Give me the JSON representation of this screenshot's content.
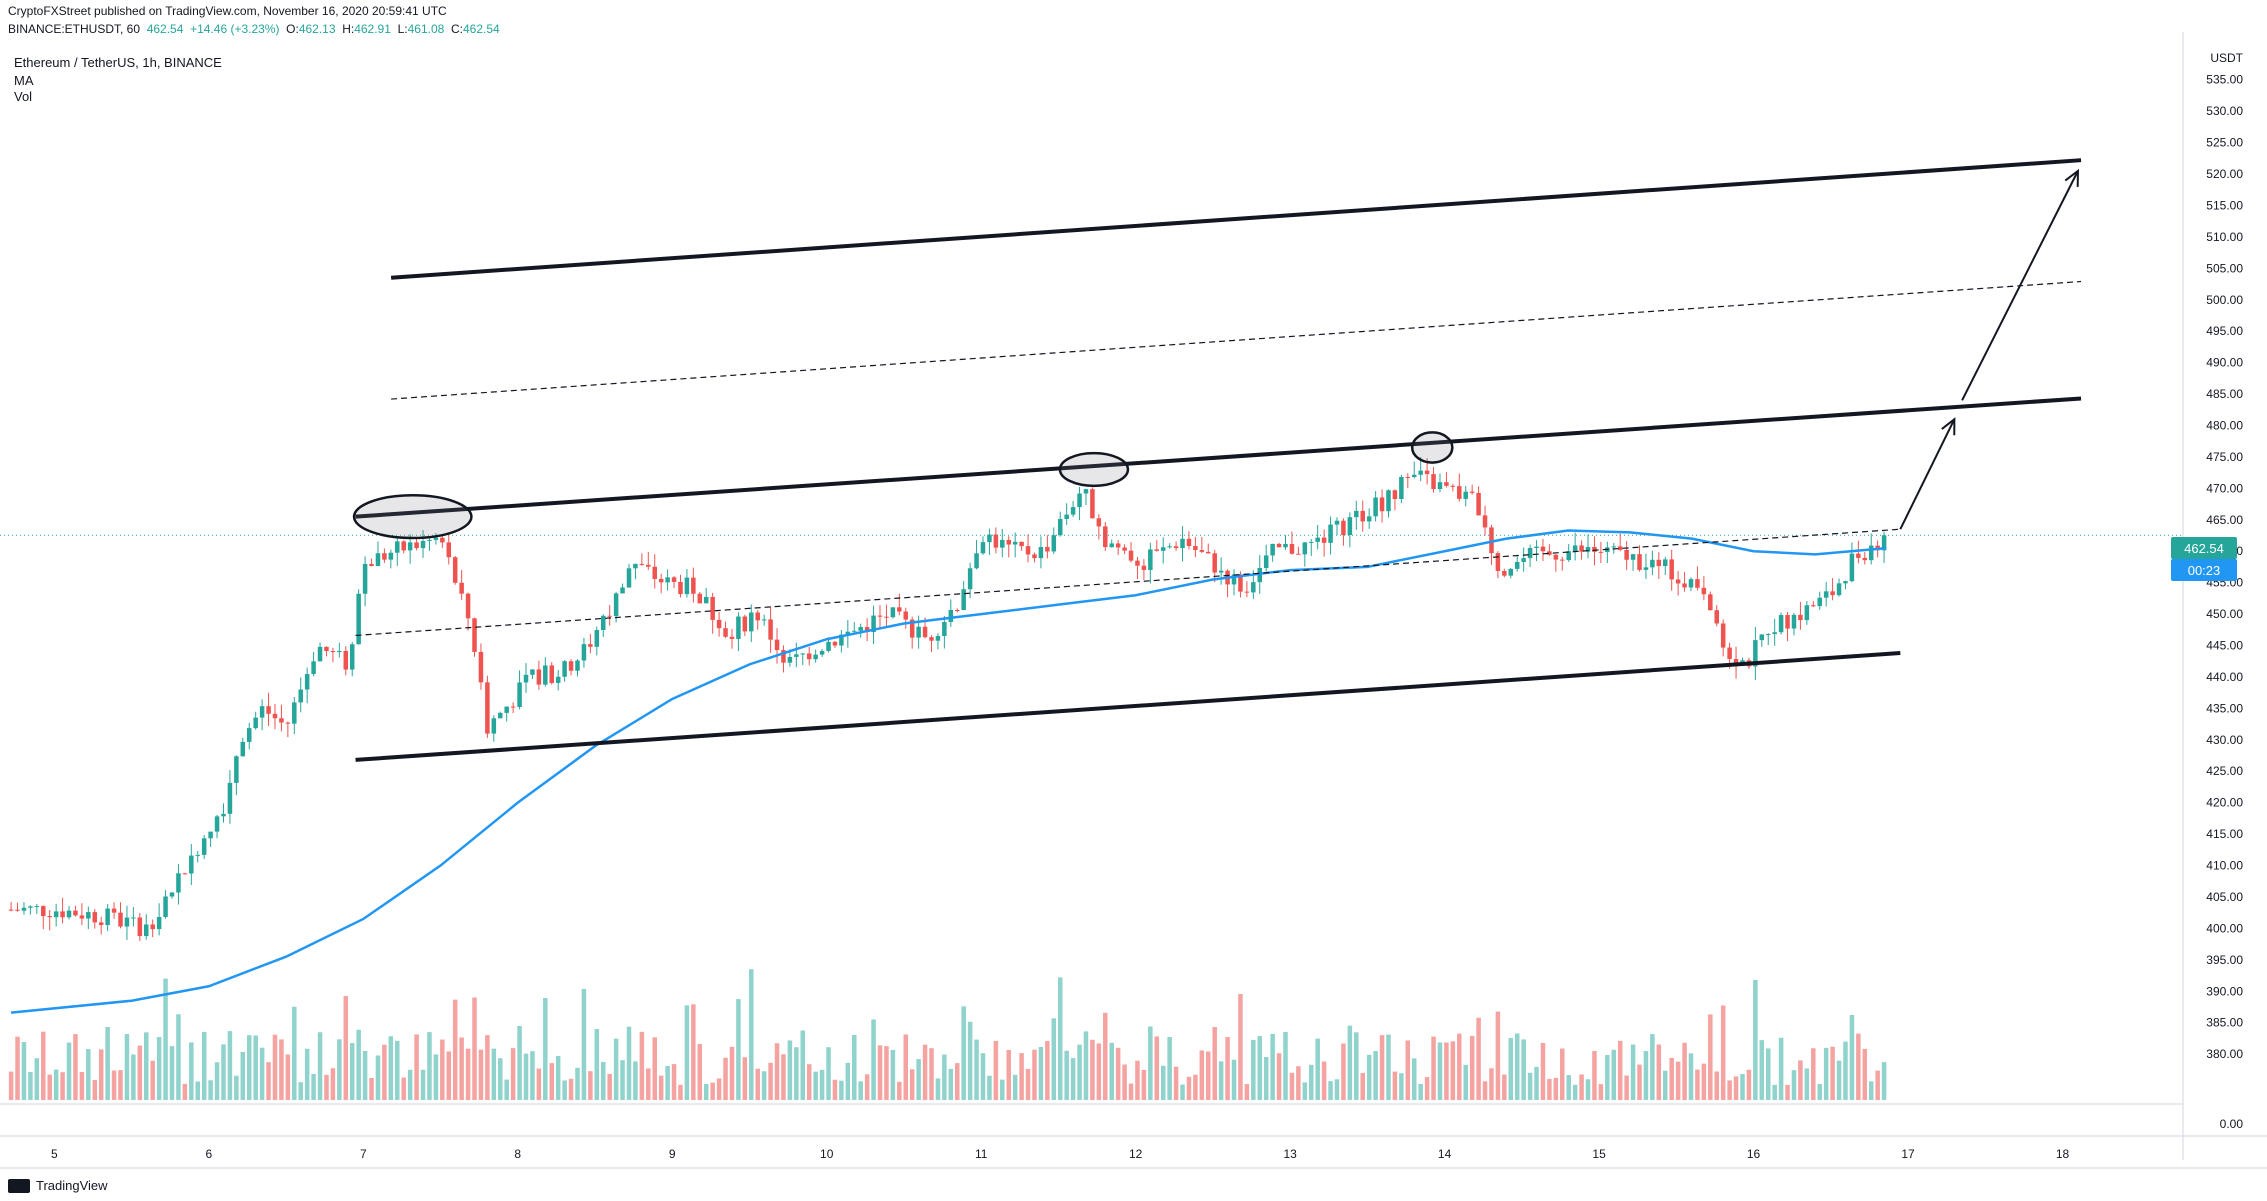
{
  "header": {
    "published": "CryptoFXStreet published on TradingView.com, November 16, 2020 20:59:41 UTC",
    "symbol": "BINANCE:ETHUSDT, 60",
    "last": "462.54",
    "change": "+14.46 (+3.23%)",
    "o_label": "O:",
    "o": "462.13",
    "h_label": "H:",
    "h": "462.91",
    "l_label": "L:",
    "l": "461.08",
    "c_label": "C:",
    "c": "462.54"
  },
  "legend": {
    "title": "Ethereum / TetherUS, 1h, BINANCE",
    "ma": "MA",
    "vol": "Vol"
  },
  "currency": "USDT",
  "badges": {
    "price": "462.54",
    "countdown": "00:23"
  },
  "footer": {
    "brand": "TradingView"
  },
  "colors": {
    "up": "#26a69a",
    "down": "#ef5350",
    "ma": "#2196f3",
    "vol_up": "#8fd3cc",
    "vol_down": "#f5a3a1"
  },
  "chart_data": {
    "type": "candlestick",
    "title": "Ethereum / TetherUS, 1h, BINANCE",
    "y_ticks": [
      380,
      385,
      390,
      395,
      400,
      405,
      410,
      415,
      420,
      425,
      430,
      435,
      440,
      445,
      450,
      455,
      460,
      465,
      470,
      475,
      480,
      485,
      490,
      495,
      500,
      505,
      510,
      515,
      520,
      525,
      530,
      535
    ],
    "y_tick_labels": [
      "380.00",
      "385.00",
      "390.00",
      "395.00",
      "400.00",
      "405.00",
      "410.00",
      "415.00",
      "420.00",
      "425.00",
      "430.00",
      "435.00",
      "440.00",
      "445.00",
      "450.00",
      "455.00",
      "460.00",
      "465.00",
      "470.00",
      "475.00",
      "480.00",
      "485.00",
      "490.00",
      "495.00",
      "500.00",
      "505.00",
      "510.00",
      "515.00",
      "520.00",
      "525.00",
      "530.00",
      "535.00"
    ],
    "ylim": [
      377,
      541
    ],
    "vol_axis_label": "0.00",
    "x_ticks": [
      "5",
      "6",
      "7",
      "8",
      "9",
      "10",
      "11",
      "12",
      "13",
      "14",
      "15",
      "16",
      "17",
      "18"
    ],
    "x_tick_days": [
      5,
      6,
      7,
      8,
      9,
      10,
      11,
      12,
      13,
      14,
      15,
      16,
      17,
      18
    ],
    "xlim_days": [
      4.7,
      18.78
    ],
    "last_day": 16.86,
    "price_path": [
      [
        4.72,
        403
      ],
      [
        5.0,
        403
      ],
      [
        5.3,
        402
      ],
      [
        5.6,
        400
      ],
      [
        5.9,
        412
      ],
      [
        6.1,
        420
      ],
      [
        6.2,
        430
      ],
      [
        6.35,
        435
      ],
      [
        6.5,
        432
      ],
      [
        6.7,
        445
      ],
      [
        6.9,
        442
      ],
      [
        7.0,
        458
      ],
      [
        7.2,
        460
      ],
      [
        7.5,
        462
      ],
      [
        7.7,
        448
      ],
      [
        7.8,
        432
      ],
      [
        7.95,
        436
      ],
      [
        8.1,
        440
      ],
      [
        8.3,
        441
      ],
      [
        8.5,
        446
      ],
      [
        8.75,
        458
      ],
      [
        8.95,
        455
      ],
      [
        9.15,
        454
      ],
      [
        9.35,
        447
      ],
      [
        9.55,
        450
      ],
      [
        9.75,
        442
      ],
      [
        9.95,
        445
      ],
      [
        10.15,
        447
      ],
      [
        10.4,
        450
      ],
      [
        10.65,
        446
      ],
      [
        10.85,
        452
      ],
      [
        11.0,
        463
      ],
      [
        11.2,
        460
      ],
      [
        11.4,
        460
      ],
      [
        11.65,
        470
      ],
      [
        11.8,
        462
      ],
      [
        12.05,
        458
      ],
      [
        12.3,
        462
      ],
      [
        12.5,
        458
      ],
      [
        12.7,
        454
      ],
      [
        12.9,
        460
      ],
      [
        13.15,
        461
      ],
      [
        13.4,
        465
      ],
      [
        13.6,
        468
      ],
      [
        13.8,
        472
      ],
      [
        14.0,
        470
      ],
      [
        14.2,
        468
      ],
      [
        14.35,
        457
      ],
      [
        14.55,
        459
      ],
      [
        14.8,
        460
      ],
      [
        15.0,
        460
      ],
      [
        15.2,
        459
      ],
      [
        15.45,
        457
      ],
      [
        15.7,
        454
      ],
      [
        15.8,
        445
      ],
      [
        15.95,
        442
      ],
      [
        16.1,
        448
      ],
      [
        16.3,
        450
      ],
      [
        16.5,
        453
      ],
      [
        16.65,
        459
      ],
      [
        16.86,
        462.5
      ]
    ],
    "lines": [
      {
        "name": "upper-channel",
        "x": [
          7.18,
          18.12
        ],
        "y": [
          503.5,
          522.2
        ],
        "style": "solid-bold"
      },
      {
        "name": "upper-mid",
        "x": [
          7.18,
          18.12
        ],
        "y": [
          484.2,
          502.9
        ],
        "style": "dashed"
      },
      {
        "name": "middle-channel",
        "x": [
          6.95,
          18.12
        ],
        "y": [
          465.5,
          484.3
        ],
        "style": "solid-bold"
      },
      {
        "name": "center-mid",
        "x": [
          6.95,
          16.95
        ],
        "y": [
          446.6,
          463.5
        ],
        "style": "dashed"
      },
      {
        "name": "lower-channel",
        "x": [
          6.95,
          16.95
        ],
        "y": [
          426.8,
          443.8
        ],
        "style": "solid-bold"
      }
    ],
    "arrows": [
      {
        "x": [
          16.95,
          17.3
        ],
        "y": [
          463.5,
          481
        ]
      },
      {
        "x": [
          17.35,
          18.1
        ],
        "y": [
          484,
          520.5
        ]
      }
    ],
    "ellipses": [
      {
        "cx": 7.32,
        "cy": 465.5,
        "rx": 0.38,
        "ry": 3.4
      },
      {
        "cx": 11.73,
        "cy": 473,
        "rx": 0.22,
        "ry": 2.6
      },
      {
        "cx": 13.92,
        "cy": 476.5,
        "rx": 0.13,
        "ry": 2.4
      }
    ],
    "ma_path": [
      [
        4.72,
        386.6
      ],
      [
        5.5,
        388.5
      ],
      [
        6.0,
        390.8
      ],
      [
        6.5,
        395.5
      ],
      [
        7.0,
        401.5
      ],
      [
        7.5,
        410
      ],
      [
        8.0,
        420
      ],
      [
        8.5,
        429
      ],
      [
        9.0,
        436.5
      ],
      [
        9.5,
        442
      ],
      [
        10.0,
        446
      ],
      [
        10.5,
        448.5
      ],
      [
        11.0,
        450
      ],
      [
        11.5,
        451.5
      ],
      [
        12.0,
        453
      ],
      [
        12.5,
        455.5
      ],
      [
        13.0,
        457
      ],
      [
        13.5,
        457.5
      ],
      [
        14.0,
        460
      ],
      [
        14.4,
        462
      ],
      [
        14.8,
        463.3
      ],
      [
        15.2,
        463
      ],
      [
        15.6,
        462
      ],
      [
        16.0,
        460
      ],
      [
        16.4,
        459.5
      ],
      [
        16.86,
        460.5
      ]
    ]
  }
}
